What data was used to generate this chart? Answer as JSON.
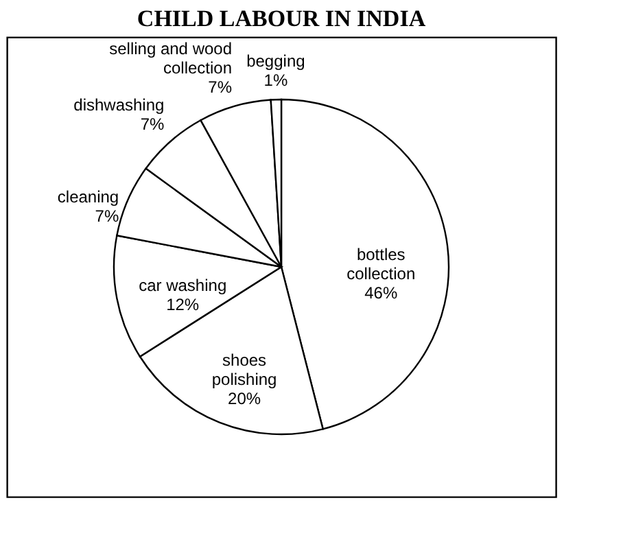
{
  "chart_data": {
    "type": "pie",
    "title": "CHILD LABOUR IN INDIA",
    "categories": [
      "bottles collection",
      "shoes polishing",
      "car washing",
      "cleaning",
      "dishwashing",
      "selling and wood collection",
      "begging"
    ],
    "values": [
      46,
      20,
      12,
      7,
      7,
      7,
      1
    ],
    "value_labels": [
      "46%",
      "20%",
      "12%",
      "7%",
      "7%",
      "7%",
      "1%"
    ],
    "colors": [
      "#ffffff",
      "#ffffff",
      "#ffffff",
      "#ffffff",
      "#ffffff",
      "#ffffff",
      "#ffffff"
    ],
    "legend": false
  }
}
